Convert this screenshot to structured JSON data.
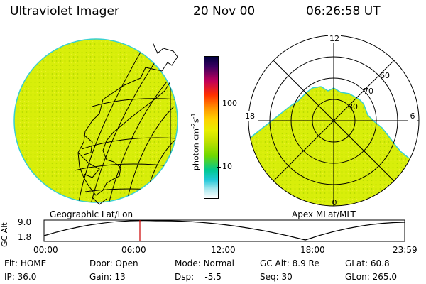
{
  "header": {
    "instrument": "Ultraviolet Imager",
    "date": "20 Nov 00",
    "time": "06:26:58 UT"
  },
  "colors": {
    "background": "#ffffff",
    "image_fill": "#d8ee0a",
    "image_edge": "#39d0d0",
    "map_lines": "#000000",
    "cursor_line": "#cc0000"
  },
  "left_panel": {
    "label": "Geographic Lat/Lon"
  },
  "colorbar": {
    "unit_main": "photon cm",
    "unit_exp1": "-2",
    "unit_s": "s",
    "unit_exp2": "-1",
    "tick_high": "100",
    "tick_low": "10"
  },
  "right_panel": {
    "label": "Apex MLat/MLT",
    "mlt_top": "12",
    "mlt_left": "18",
    "mlt_right": "6",
    "mlt_bottom": "0",
    "lat_60": "60",
    "lat_70": "70",
    "lat_80": "80"
  },
  "altitude_plot": {
    "ylabel": "GC Alt",
    "y_high": "9.0",
    "y_low": "1.8",
    "x_ticks": [
      "00:00",
      "06:00",
      "12:00",
      "18:00",
      "23:59"
    ],
    "cursor_time": "06:26:58"
  },
  "status": {
    "filter_label": "Flt:",
    "filter_value": "HOME",
    "door_label": "Door:",
    "door_value": "Open",
    "mode_label": "Mode:",
    "mode_value": "Normal",
    "gcalt_label": "GC Alt:",
    "gcalt_value": "8.9 Re",
    "glat_label": "GLat:",
    "glat_value": "60.8",
    "ip_label": "IP:",
    "ip_value": "36.0",
    "gain_label": "Gain:",
    "gain_value": "13",
    "dsp_label": "Dsp:",
    "dsp_value": "-5.5",
    "seq_label": "Seq:",
    "seq_value": "30",
    "glon_label": "GLon:",
    "glon_value": "265.0"
  }
}
